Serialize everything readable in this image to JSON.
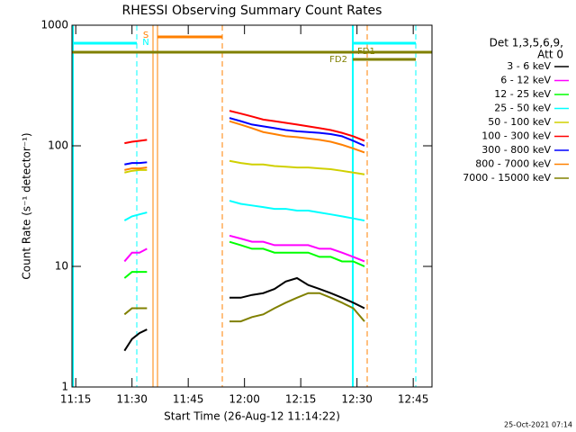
{
  "chart_data": {
    "type": "line",
    "title": "RHESSI Observing Summary Count Rates",
    "xlabel": "Start Time (26-Aug-12 11:14:22)",
    "ylabel": "Count Rate (s⁻¹ detector⁻¹)",
    "legend_title": [
      "Det 1,3,5,6,9,",
      "Att 0"
    ],
    "annotations": [
      "S",
      "N",
      "FD1",
      "FD2"
    ],
    "footer": "25-Oct-2021 07:14",
    "log_y": true,
    "xlim": [
      674,
      770
    ],
    "xticks": [
      {
        "value": 675,
        "label": "11:15"
      },
      {
        "value": 690,
        "label": "11:30"
      },
      {
        "value": 705,
        "label": "11:45"
      },
      {
        "value": 720,
        "label": "12:00"
      },
      {
        "value": 735,
        "label": "12:15"
      },
      {
        "value": 750,
        "label": "12:30"
      },
      {
        "value": 765,
        "label": "12:45"
      }
    ],
    "ylim": [
      1,
      1000
    ],
    "yticks": [
      1,
      10,
      100,
      1000
    ],
    "x": [
      688,
      690,
      692,
      694,
      706,
      716,
      719,
      722,
      725,
      728,
      731,
      734,
      737,
      740,
      743,
      746,
      749,
      752
    ],
    "series": [
      {
        "name": "3 - 6 keV",
        "color": "#000000",
        "values": [
          2,
          2.5,
          2.8,
          3,
          null,
          5.5,
          5.5,
          5.8,
          6,
          6.5,
          7.5,
          8,
          7,
          6.5,
          6,
          5.5,
          5,
          4.5
        ]
      },
      {
        "name": "6 - 12 keV",
        "color": "#ff00ff",
        "values": [
          11,
          13,
          13,
          14,
          null,
          18,
          17,
          16,
          16,
          15,
          15,
          15,
          15,
          14,
          14,
          13,
          12,
          11
        ]
      },
      {
        "name": "12 - 25 keV",
        "color": "#00ff00",
        "values": [
          8,
          9,
          9,
          9,
          null,
          16,
          15,
          14,
          14,
          13,
          13,
          13,
          13,
          12,
          12,
          11,
          11,
          10
        ]
      },
      {
        "name": "25 - 50 keV",
        "color": "#00ffff",
        "values": [
          24,
          26,
          27,
          28,
          null,
          35,
          33,
          32,
          31,
          30,
          30,
          29,
          29,
          28,
          27,
          26,
          25,
          24
        ]
      },
      {
        "name": "50 - 100 keV",
        "color": "#d0d000",
        "values": [
          60,
          62,
          63,
          63,
          null,
          75,
          72,
          70,
          70,
          68,
          67,
          66,
          66,
          65,
          64,
          62,
          60,
          58
        ]
      },
      {
        "name": "100 - 300 keV",
        "color": "#ff0000",
        "values": [
          105,
          108,
          110,
          112,
          null,
          195,
          185,
          175,
          165,
          160,
          155,
          150,
          145,
          140,
          135,
          128,
          120,
          110
        ]
      },
      {
        "name": "300 - 800 keV",
        "color": "#0000ff",
        "values": [
          70,
          72,
          72,
          73,
          null,
          170,
          160,
          150,
          145,
          140,
          135,
          132,
          130,
          128,
          125,
          120,
          110,
          100
        ]
      },
      {
        "name": "800 - 7000 keV",
        "color": "#ff8000",
        "values": [
          63,
          65,
          65,
          66,
          null,
          160,
          150,
          140,
          130,
          125,
          120,
          118,
          115,
          112,
          108,
          102,
          95,
          88
        ]
      },
      {
        "name": "7000 - 15000 keV",
        "color": "#808000",
        "values": [
          4,
          4.5,
          4.5,
          4.5,
          null,
          3.5,
          3.5,
          3.8,
          4,
          4.5,
          5,
          5.5,
          6,
          6,
          5.5,
          5,
          4.5,
          3.5
        ]
      }
    ]
  }
}
